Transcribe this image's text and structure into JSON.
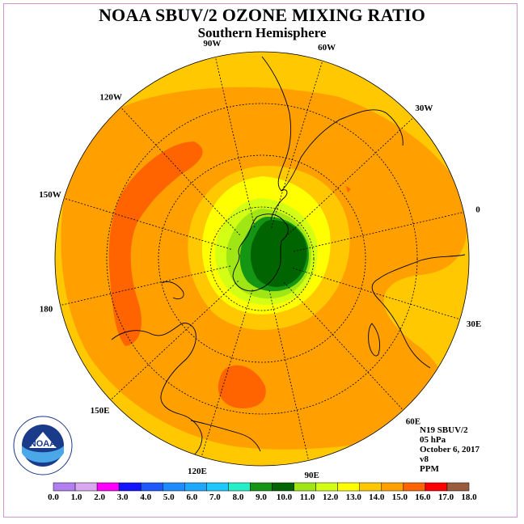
{
  "header": {
    "title": "NOAA SBUV/2 OZONE MIXING RATIO",
    "subtitle": "Southern Hemisphere"
  },
  "map": {
    "projection": "polar stereographic, south pole centered",
    "longitude_labels": [
      "90W",
      "60W",
      "30W",
      "0",
      "30E",
      "60E",
      "90E",
      "120E",
      "150E",
      "180",
      "150W",
      "120W"
    ],
    "features": [
      "ozone mixing ratio contours",
      "coastlines",
      "latitude circles",
      "longitude meridians"
    ]
  },
  "info": {
    "satellite": "N19 SBUV/2",
    "level": "05 hPa",
    "date": "October 6, 2017",
    "version": "v8",
    "units": "PPM"
  },
  "logo": {
    "name": "NOAA",
    "ring_text": "NATIONAL OCEANIC AND ATMOSPHERIC ADMINISTRATION U.S. DEPARTMENT OF COMMERCE"
  },
  "colorbar": {
    "tick_labels": [
      "0.0",
      "1.0",
      "2.0",
      "3.0",
      "4.0",
      "5.0",
      "6.0",
      "7.0",
      "8.0",
      "9.0",
      "10.0",
      "11.0",
      "12.0",
      "13.0",
      "14.0",
      "15.0",
      "16.0",
      "17.0",
      "18.0"
    ],
    "colors": [
      "#b27ff0",
      "#d9a8f0",
      "#ff00ff",
      "#1414ff",
      "#1e5aff",
      "#1e8cff",
      "#1ea8ff",
      "#1ec8ff",
      "#22f0c8",
      "#149614",
      "#006400",
      "#a0e614",
      "#d2ff14",
      "#ffff00",
      "#ffc800",
      "#ffa000",
      "#ff6400",
      "#ff0000",
      "#9a5a3c"
    ]
  },
  "colors": {
    "lvl_13_14": "#ffc800",
    "lvl_14_15": "#ffa000",
    "lvl_15_16": "#ff6400",
    "lvl_12_13": "#ffff00",
    "lvl_11_12": "#d2ff14",
    "lvl_10_11": "#a0e614",
    "lvl_9_10": "#149614",
    "lvl_8_9": "#006400"
  }
}
